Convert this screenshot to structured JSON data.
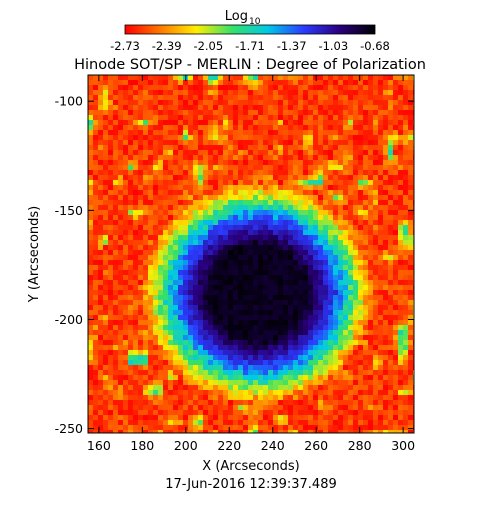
{
  "chart_data": {
    "type": "heatmap",
    "title": "Hinode SOT/SP - MERLIN : Degree of Polarization",
    "colorbar": {
      "label": "Log",
      "label_subscript": "10",
      "ticks": [
        "-2.73",
        "-2.39",
        "-2.05",
        "-1.71",
        "-1.37",
        "-1.03",
        "-0.68"
      ],
      "range": [
        -2.73,
        -0.68
      ],
      "colormap": [
        "#ff0000",
        "#ff7a00",
        "#ffee00",
        "#36e06a",
        "#00c8e6",
        "#2a3cff",
        "#2a0080",
        "#000000"
      ]
    },
    "xlabel": "X (Arcseconds)",
    "ylabel": "Y (Arcseconds)",
    "xlim": [
      155,
      305
    ],
    "ylim": [
      -252,
      -88
    ],
    "x_ticks": [
      160,
      180,
      200,
      220,
      240,
      260,
      280,
      300
    ],
    "y_ticks": [
      -100,
      -150,
      -200,
      -250
    ],
    "features": {
      "sunspot_center": [
        233,
        -188
      ],
      "umbra_log_value": -0.75,
      "penumbra_log_value": -1.3,
      "quiet_sun_log_value": -2.6
    },
    "timestamp": "17-Jun-2016 12:39:37.489"
  }
}
